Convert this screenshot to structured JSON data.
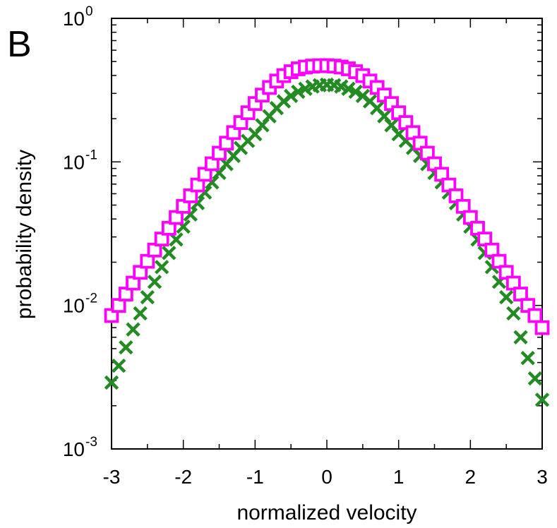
{
  "panel_label": "B",
  "chart_data": {
    "type": "scatter",
    "xlabel": "normalized velocity",
    "ylabel": "probability density",
    "xlim": [
      -3,
      3
    ],
    "ylim": [
      0.001,
      1
    ],
    "y_scale": "log",
    "x_ticks": [
      "-3",
      "-2",
      "-1",
      "0",
      "1",
      "2",
      "3"
    ],
    "y_ticks": [
      {
        "value": 1,
        "base": "10",
        "exp": "0"
      },
      {
        "value": 0.1,
        "base": "10",
        "exp": "-1"
      },
      {
        "value": 0.01,
        "base": "10",
        "exp": "-2"
      },
      {
        "value": 0.001,
        "base": "10",
        "exp": "-3"
      }
    ],
    "grid": false,
    "legend": "none",
    "series": [
      {
        "marker": "cross",
        "color": "#228b22",
        "x": [
          -3.0,
          -2.9,
          -2.8,
          -2.7,
          -2.6,
          -2.5,
          -2.4,
          -2.3,
          -2.2,
          -2.1,
          -2.0,
          -1.9,
          -1.8,
          -1.7,
          -1.6,
          -1.5,
          -1.4,
          -1.3,
          -1.2,
          -1.1,
          -1.0,
          -0.9,
          -0.8,
          -0.7,
          -0.6,
          -0.5,
          -0.4,
          -0.3,
          -0.2,
          -0.1,
          0.0,
          0.1,
          0.2,
          0.3,
          0.4,
          0.5,
          0.6,
          0.7,
          0.8,
          0.9,
          1.0,
          1.1,
          1.2,
          1.3,
          1.4,
          1.5,
          1.6,
          1.7,
          1.8,
          1.9,
          2.0,
          2.1,
          2.2,
          2.3,
          2.4,
          2.5,
          2.6,
          2.7,
          2.8,
          2.9,
          3.0
        ],
        "y": [
          0.0029,
          0.0038,
          0.0051,
          0.0068,
          0.0088,
          0.0114,
          0.0146,
          0.0185,
          0.0232,
          0.0288,
          0.0354,
          0.043,
          0.0516,
          0.0612,
          0.072,
          0.0838,
          0.0966,
          0.11,
          0.125,
          0.14,
          0.156,
          0.18,
          0.208,
          0.237,
          0.264,
          0.288,
          0.308,
          0.323,
          0.335,
          0.342,
          0.345,
          0.342,
          0.335,
          0.323,
          0.308,
          0.288,
          0.264,
          0.237,
          0.208,
          0.18,
          0.156,
          0.14,
          0.125,
          0.11,
          0.0966,
          0.0838,
          0.072,
          0.0612,
          0.0516,
          0.043,
          0.0354,
          0.0288,
          0.0232,
          0.0185,
          0.0146,
          0.0114,
          0.0088,
          0.006,
          0.0043,
          0.0031,
          0.0022
        ]
      },
      {
        "marker": "square",
        "color": "#ff00ff",
        "x": [
          -3.0,
          -2.9,
          -2.8,
          -2.7,
          -2.6,
          -2.5,
          -2.4,
          -2.3,
          -2.2,
          -2.1,
          -2.0,
          -1.9,
          -1.8,
          -1.7,
          -1.6,
          -1.5,
          -1.4,
          -1.3,
          -1.2,
          -1.1,
          -1.0,
          -0.9,
          -0.8,
          -0.7,
          -0.6,
          -0.5,
          -0.4,
          -0.3,
          -0.2,
          -0.1,
          0.0,
          0.1,
          0.2,
          0.3,
          0.4,
          0.5,
          0.6,
          0.7,
          0.8,
          0.9,
          1.0,
          1.1,
          1.2,
          1.3,
          1.4,
          1.5,
          1.6,
          1.7,
          1.8,
          1.9,
          2.0,
          2.1,
          2.2,
          2.3,
          2.4,
          2.5,
          2.6,
          2.7,
          2.8,
          2.9,
          3.0
        ],
        "y": [
          0.0085,
          0.01,
          0.012,
          0.0143,
          0.017,
          0.0203,
          0.0243,
          0.029,
          0.0345,
          0.041,
          0.049,
          0.058,
          0.069,
          0.082,
          0.097,
          0.115,
          0.135,
          0.16,
          0.188,
          0.22,
          0.255,
          0.292,
          0.33,
          0.366,
          0.399,
          0.425,
          0.445,
          0.458,
          0.465,
          0.468,
          0.468,
          0.465,
          0.458,
          0.445,
          0.425,
          0.399,
          0.366,
          0.33,
          0.292,
          0.255,
          0.22,
          0.188,
          0.16,
          0.135,
          0.115,
          0.097,
          0.082,
          0.069,
          0.058,
          0.049,
          0.041,
          0.0345,
          0.029,
          0.0243,
          0.0203,
          0.017,
          0.0143,
          0.012,
          0.01,
          0.0085,
          0.007
        ]
      }
    ]
  }
}
